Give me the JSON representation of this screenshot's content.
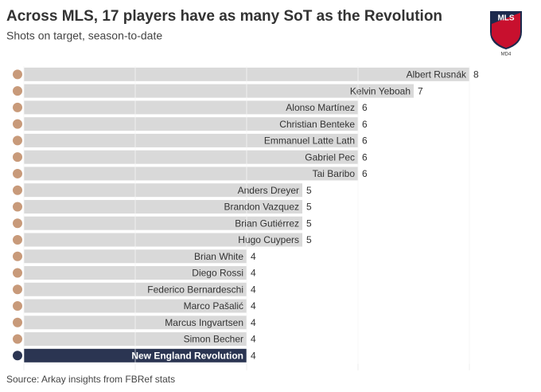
{
  "chart_data": {
    "type": "bar",
    "orientation": "horizontal",
    "title": "Across MLS, 17 players have as many SoT as the Revolution",
    "subtitle": "Shots on target, season-to-date",
    "source": "Source: Arkay insights from FBRef stats",
    "logo": {
      "text": "MLS",
      "subtext": "MD4"
    },
    "categories": [
      "Albert Rusnák",
      "Kelvin Yeboah",
      "Alonso Martínez",
      "Christian Benteke",
      "Emmanuel Latte Lath",
      "Gabriel Pec",
      "Tai Baribo",
      "Anders Dreyer",
      "Brandon Vazquez",
      "Brian Gutiérrez",
      "Hugo Cuypers",
      "Brian White",
      "Diego Rossi",
      "Federico Bernardeschi",
      "Marco Pašalić",
      "Marcus Ingvartsen",
      "Simon Becher",
      "New England Revolution"
    ],
    "values": [
      8,
      7,
      6,
      6,
      6,
      6,
      6,
      5,
      5,
      5,
      5,
      4,
      4,
      4,
      4,
      4,
      4,
      4
    ],
    "colors": [
      "#d9d9d9",
      "#d9d9d9",
      "#d9d9d9",
      "#d9d9d9",
      "#d9d9d9",
      "#d9d9d9",
      "#d9d9d9",
      "#d9d9d9",
      "#d9d9d9",
      "#d9d9d9",
      "#d9d9d9",
      "#d9d9d9",
      "#d9d9d9",
      "#d9d9d9",
      "#d9d9d9",
      "#d9d9d9",
      "#d9d9d9",
      "#2b3552"
    ],
    "xlim": [
      0,
      8
    ],
    "xticks": [
      0,
      2,
      4,
      6,
      8
    ],
    "grid": true
  }
}
